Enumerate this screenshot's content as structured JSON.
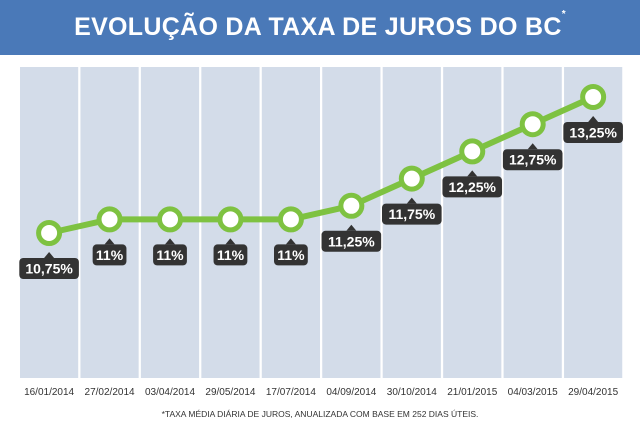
{
  "title": "EVOLUÇÃO DA TAXA DE JUROS DO BC",
  "title_mark": "*",
  "footnote": "*TAXA MÉDIA DIÁRIA DE JUROS, ANUALIZADA COM BASE EM 252 DIAS ÚTEIS.",
  "colors": {
    "header": "#4a79b8",
    "column": "#d3dce9",
    "line": "#7ec241",
    "label_bg": "#333333",
    "label_text": "#ffffff",
    "axis_text": "#333333"
  },
  "chart_data": {
    "type": "line",
    "categories": [
      "16/01/2014",
      "27/02/2014",
      "03/04/2014",
      "29/05/2014",
      "17/07/2014",
      "04/09/2014",
      "30/10/2014",
      "21/01/2015",
      "04/03/2015",
      "29/04/2015"
    ],
    "values": [
      10.75,
      11,
      11,
      11,
      11,
      11.25,
      11.75,
      12.25,
      12.75,
      13.25
    ],
    "data_labels": [
      "10,75%",
      "11%",
      "11%",
      "11%",
      "11%",
      "11,25%",
      "11,75%",
      "12,25%",
      "12,75%",
      "13,25%"
    ],
    "unit": "%",
    "ylim": [
      10,
      13.5
    ],
    "grid": false,
    "legend": "none"
  }
}
